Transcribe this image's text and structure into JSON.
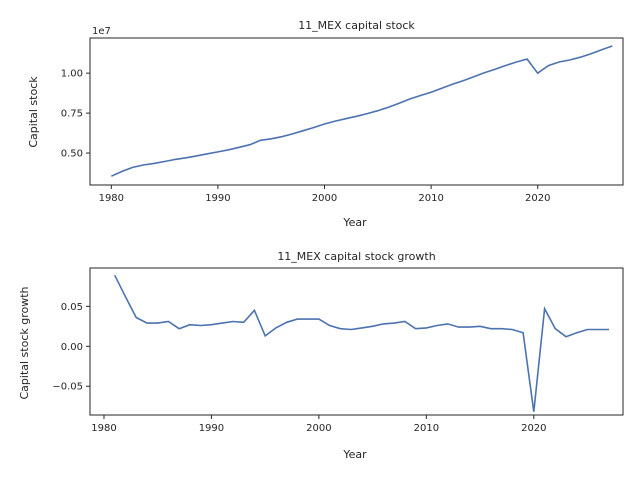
{
  "chart_data": [
    {
      "type": "line",
      "title": "11_MEX capital stock",
      "xlabel": "Year",
      "ylabel": "Capital stock",
      "offset_text": "1e7",
      "xlim": [
        1978,
        2028
      ],
      "ylim": [
        3.0,
        12.2
      ],
      "xticks": [
        1980,
        1990,
        2000,
        2010,
        2020
      ],
      "yticks": [
        5.0,
        7.5,
        10.0
      ],
      "ytick_labels": [
        "0.50",
        "0.75",
        "1.00"
      ],
      "grid": false,
      "color": "#4c72b0",
      "x": [
        1980,
        1981,
        1982,
        1983,
        1984,
        1985,
        1986,
        1987,
        1988,
        1989,
        1990,
        1991,
        1992,
        1993,
        1994,
        1995,
        1996,
        1997,
        1998,
        1999,
        2000,
        2001,
        2002,
        2003,
        2004,
        2005,
        2006,
        2007,
        2008,
        2009,
        2010,
        2011,
        2012,
        2013,
        2014,
        2015,
        2016,
        2017,
        2018,
        2019,
        2020,
        2021,
        2022,
        2023,
        2024,
        2025,
        2026,
        2027
      ],
      "y": [
        3.55,
        3.85,
        4.1,
        4.25,
        4.35,
        4.47,
        4.6,
        4.7,
        4.82,
        4.95,
        5.07,
        5.2,
        5.36,
        5.52,
        5.8,
        5.89,
        6.02,
        6.2,
        6.4,
        6.6,
        6.82,
        7.0,
        7.15,
        7.3,
        7.47,
        7.65,
        7.87,
        8.12,
        8.38,
        8.6,
        8.8,
        9.05,
        9.3,
        9.53,
        9.77,
        10.02,
        10.25,
        10.48,
        10.7,
        10.88,
        10.0,
        10.47,
        10.7,
        10.82,
        11.0,
        11.22,
        11.46,
        11.7
      ]
    },
    {
      "type": "line",
      "title": "11_MEX capital stock growth",
      "xlabel": "Year",
      "ylabel": "Capital stock growth",
      "xlim": [
        1978.7,
        2028.3
      ],
      "ylim": [
        -0.086,
        0.098
      ],
      "xticks": [
        1980,
        1990,
        2000,
        2010,
        2020
      ],
      "yticks": [
        0.05,
        0.0,
        -0.05
      ],
      "ytick_labels": [
        "0.05",
        "0.00",
        "−0.05"
      ],
      "grid": false,
      "color": "#4c72b0",
      "x": [
        1981,
        1982,
        1983,
        1984,
        1985,
        1986,
        1987,
        1988,
        1989,
        1990,
        1991,
        1992,
        1993,
        1994,
        1995,
        1996,
        1997,
        1998,
        1999,
        2000,
        2001,
        2002,
        2003,
        2004,
        2005,
        2006,
        2007,
        2008,
        2009,
        2010,
        2011,
        2012,
        2013,
        2014,
        2015,
        2016,
        2017,
        2018,
        2019,
        2020,
        2021,
        2022,
        2023,
        2024,
        2025,
        2026,
        2027
      ],
      "y": [
        0.089,
        0.062,
        0.036,
        0.029,
        0.029,
        0.031,
        0.022,
        0.027,
        0.026,
        0.027,
        0.029,
        0.031,
        0.03,
        0.045,
        0.013,
        0.023,
        0.03,
        0.034,
        0.034,
        0.034,
        0.026,
        0.022,
        0.021,
        0.023,
        0.025,
        0.028,
        0.029,
        0.031,
        0.022,
        0.023,
        0.026,
        0.028,
        0.024,
        0.024,
        0.025,
        0.022,
        0.022,
        0.021,
        0.017,
        -0.082,
        0.047,
        0.022,
        0.012,
        0.017,
        0.021,
        0.021,
        0.021
      ]
    }
  ]
}
